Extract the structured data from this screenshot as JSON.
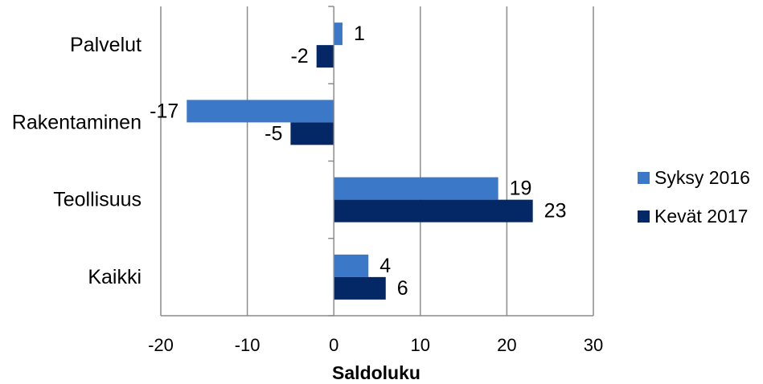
{
  "chart_data": {
    "type": "bar",
    "orientation": "horizontal",
    "categories": [
      "Palvelut",
      "Rakentaminen",
      "Teollisuus",
      "Kaikki"
    ],
    "series": [
      {
        "name": "Syksy 2016",
        "values": [
          1,
          -17,
          19,
          4
        ],
        "color": "#3b78c8"
      },
      {
        "name": "Kevät 2017",
        "values": [
          -2,
          -5,
          23,
          6
        ],
        "color": "#042766"
      }
    ],
    "xlabel": "Saldoluku",
    "xlim": [
      -20,
      30
    ],
    "xticks": [
      -20,
      -10,
      0,
      10,
      20,
      30
    ],
    "grid": "vertical",
    "legend": "right"
  }
}
